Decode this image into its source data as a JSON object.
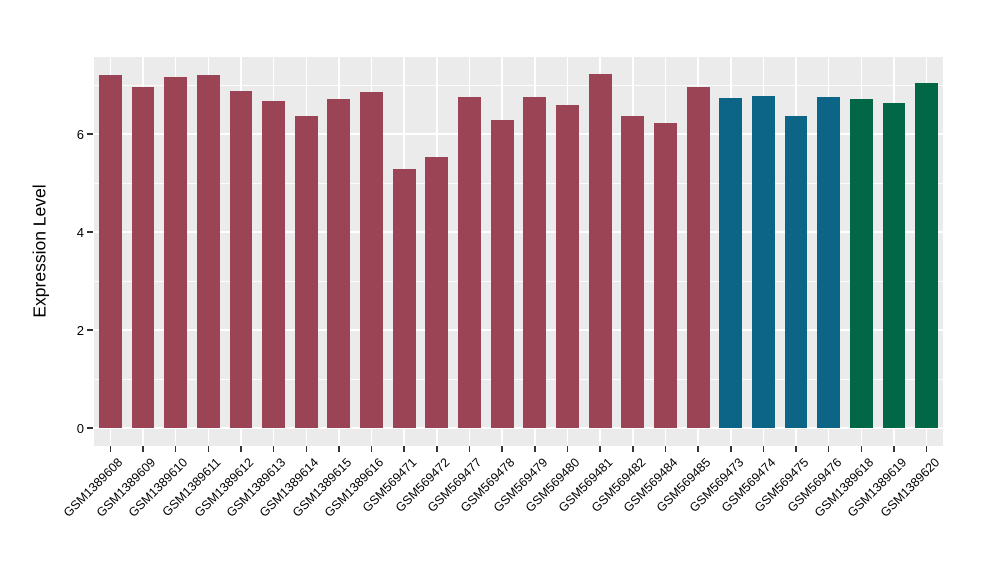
{
  "chart_data": {
    "type": "bar",
    "title": "",
    "xlabel": "",
    "ylabel": "Expression Level",
    "ylim": [
      0,
      7.6
    ],
    "yticks_major": [
      0,
      2,
      4,
      6
    ],
    "yticks_minor": [
      1,
      3,
      5,
      7
    ],
    "grid": "on",
    "legend": "none",
    "categories": [
      "GSM1389608",
      "GSM1389609",
      "GSM1389610",
      "GSM1389611",
      "GSM1389612",
      "GSM1389613",
      "GSM1389614",
      "GSM1389615",
      "GSM1389616",
      "GSM569471",
      "GSM569472",
      "GSM569477",
      "GSM569478",
      "GSM569479",
      "GSM569480",
      "GSM569481",
      "GSM569482",
      "GSM569484",
      "GSM569485",
      "GSM569473",
      "GSM569474",
      "GSM569475",
      "GSM569476",
      "GSM1389618",
      "GSM1389619",
      "GSM1389620"
    ],
    "values": [
      7.2,
      6.95,
      7.16,
      7.2,
      6.87,
      6.67,
      6.36,
      6.71,
      6.85,
      5.29,
      5.54,
      6.76,
      6.29,
      6.75,
      6.6,
      7.22,
      6.37,
      6.22,
      6.95,
      6.73,
      6.77,
      6.36,
      6.76,
      6.71,
      6.64,
      7.04
    ],
    "bar_colors": [
      "#9B4455",
      "#9B4455",
      "#9B4455",
      "#9B4455",
      "#9B4455",
      "#9B4455",
      "#9B4455",
      "#9B4455",
      "#9B4455",
      "#9B4455",
      "#9B4455",
      "#9B4455",
      "#9B4455",
      "#9B4455",
      "#9B4455",
      "#9B4455",
      "#9B4455",
      "#9B4455",
      "#9B4455",
      "#0C6587",
      "#0C6587",
      "#0C6587",
      "#0C6587",
      "#016747",
      "#016747",
      "#016747"
    ]
  },
  "colors": {
    "page_background": "#FFFFFF",
    "panel_background": "#EBEBEB",
    "gridline": "#FFFFFF",
    "tick_mark": "#333333",
    "text": "#000000",
    "bar_maroon": "#9B4455",
    "bar_teal": "#0C6587",
    "bar_green": "#016747"
  }
}
